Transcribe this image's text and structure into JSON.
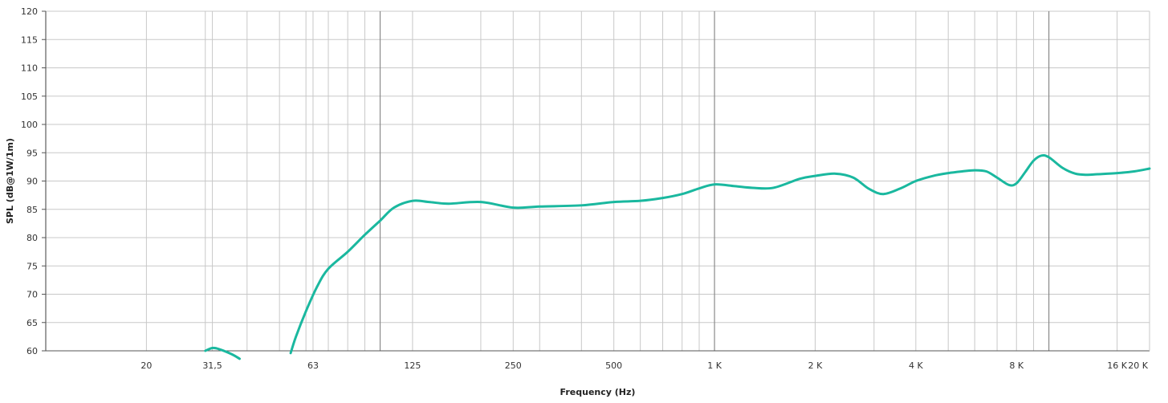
{
  "chart_data": {
    "type": "line",
    "title": "",
    "xlabel": "Frequency (Hz)",
    "ylabel": "SPL (dB@1W/1m)",
    "x_scale": "log",
    "xlim": [
      10,
      20000
    ],
    "ylim": [
      60,
      120
    ],
    "y_ticks": [
      60,
      65,
      70,
      75,
      80,
      85,
      90,
      95,
      100,
      105,
      110,
      115,
      120
    ],
    "x_ticks": [
      {
        "value": 20,
        "label": "20"
      },
      {
        "value": 31.5,
        "label": "31,5"
      },
      {
        "value": 63,
        "label": "63"
      },
      {
        "value": 125,
        "label": "125"
      },
      {
        "value": 250,
        "label": "250"
      },
      {
        "value": 500,
        "label": "500"
      },
      {
        "value": 1000,
        "label": "1 K"
      },
      {
        "value": 2000,
        "label": "2 K"
      },
      {
        "value": 4000,
        "label": "4 K"
      },
      {
        "value": 8000,
        "label": "8 K"
      },
      {
        "value": 16000,
        "label": "16 K"
      },
      {
        "value": 20000,
        "label": "20 K"
      }
    ],
    "grid": true,
    "legend": "none",
    "colors": {
      "line": "#1ab89f",
      "grid": "#c8c8c8",
      "decade_grid": "#8a8a8a",
      "text": "#333333"
    },
    "series": [
      {
        "x": [
          30.0,
          31.5,
          33.0,
          36.0,
          38.0
        ],
        "y": [
          60.0,
          60.5,
          60.3,
          59.4,
          58.6
        ]
      },
      {
        "x": [
          54.0,
          56.0,
          60.0,
          65.0,
          70.0,
          80.0,
          90.0,
          100.0,
          110.0,
          125.0,
          140.0,
          160.0,
          200.0,
          250.0,
          300.0,
          400.0,
          500.0,
          600.0,
          700.0,
          800.0,
          900.0,
          1000.0,
          1150.0,
          1300.0,
          1500.0,
          1800.0,
          2000.0,
          2300.0,
          2600.0,
          2900.0,
          3200.0,
          3600.0,
          4000.0,
          4500.0,
          5000.0,
          5500.0,
          6000.0,
          6500.0,
          7000.0,
          7600.0,
          8000.0,
          8500.0,
          9000.0,
          9500.0,
          10000.0,
          11000.0,
          12000.0,
          13000.0,
          14000.0,
          16000.0,
          18000.0,
          20000.0
        ],
        "y": [
          59.6,
          62.5,
          67.0,
          71.5,
          74.5,
          77.5,
          80.5,
          83.0,
          85.3,
          86.5,
          86.3,
          86.0,
          86.3,
          85.3,
          85.5,
          85.7,
          86.3,
          86.5,
          87.0,
          87.7,
          88.7,
          89.4,
          89.1,
          88.8,
          88.8,
          90.4,
          90.9,
          91.3,
          90.6,
          88.6,
          87.7,
          88.7,
          90.0,
          90.9,
          91.4,
          91.7,
          91.9,
          91.7,
          90.6,
          89.3,
          89.6,
          91.6,
          93.6,
          94.5,
          94.2,
          92.3,
          91.3,
          91.1,
          91.2,
          91.4,
          91.7,
          92.2
        ]
      }
    ]
  }
}
